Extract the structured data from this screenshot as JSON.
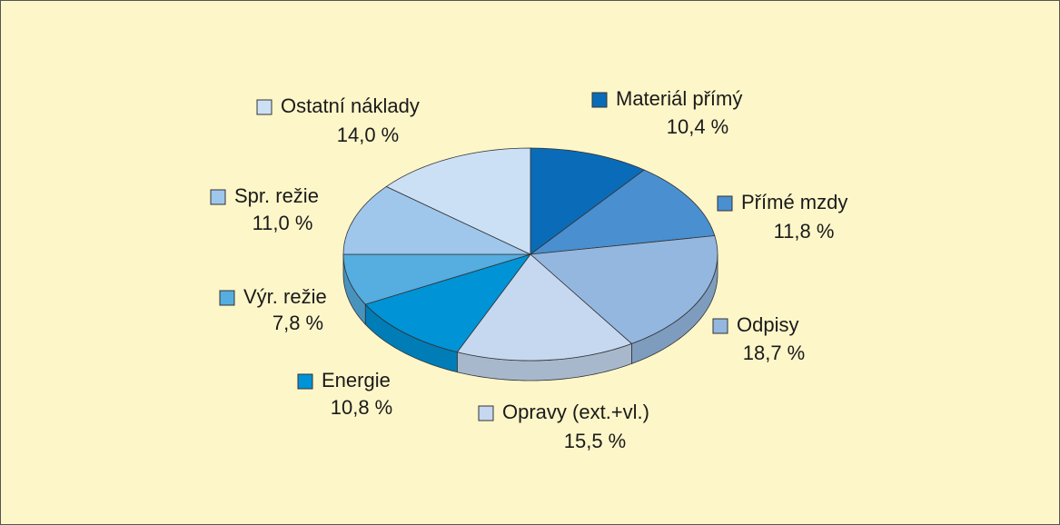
{
  "chart_data": {
    "type": "pie",
    "categories": [
      "Materiál přímý",
      "Přímé mzdy",
      "Odpisy",
      "Opravy (ext.+vl.)",
      "Energie",
      "Výr. režie",
      "Spr. režie",
      "Ostatní náklady"
    ],
    "values": [
      10.4,
      11.8,
      18.7,
      15.5,
      10.8,
      7.8,
      11.0,
      14.0
    ],
    "value_labels": [
      "10,4 %",
      "11,8 %",
      "18,7 %",
      "15,5 %",
      "10,8 %",
      "7,8 %",
      "11,0 %",
      "14,0 %"
    ],
    "colors": [
      "#0a6cb8",
      "#4a8fd0",
      "#94b7e0",
      "#c6d8f0",
      "#0093d6",
      "#55ade0",
      "#9fc7ec",
      "#cce0f5"
    ]
  }
}
